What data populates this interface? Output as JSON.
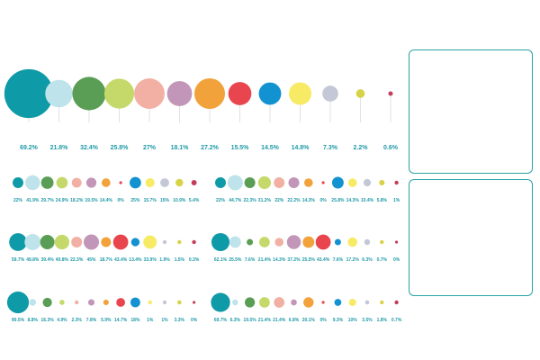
{
  "chart_data": {
    "type": "bubble-strip",
    "category_colors": [
      "#0e9aa7",
      "#bfe3ea",
      "#5a9e55",
      "#c5d96b",
      "#f2b0a4",
      "#c296b8",
      "#f2a23a",
      "#e8454e",
      "#1292d0",
      "#f7ea65",
      "#c4c8d6",
      "#d8d248",
      "#c43d5b"
    ],
    "rows": [
      {
        "values": [
          "69.2%",
          "21.8%",
          "32.4%",
          "25.8%",
          "27%",
          "18.1%",
          "27.2%",
          "15.5%",
          "14.5%",
          "14.8%",
          "7.3%",
          "2.2%",
          "0.6%"
        ]
      },
      {
        "values": [
          "22%",
          "41.9%",
          "29.7%",
          "24.9%",
          "18.2%",
          "19.5%",
          "14.4%",
          "0%",
          "25%",
          "15.7%",
          "15%",
          "10.9%",
          "5.4%"
        ]
      },
      {
        "values": [
          "22%",
          "44.7%",
          "22.3%",
          "31.2%",
          "22%",
          "22.2%",
          "14.3%",
          "0%",
          "25.8%",
          "14.3%",
          "10.4%",
          "5.8%",
          "1%"
        ]
      },
      {
        "values": [
          "59.7%",
          "49.8%",
          "39.4%",
          "40.8%",
          "22.3%",
          "45%",
          "18.7%",
          "43.4%",
          "13.4%",
          "33.9%",
          "1.9%",
          "1.5%",
          "0.3%"
        ]
      },
      {
        "values": [
          "62.1%",
          "25.5%",
          "7.6%",
          "21.4%",
          "14.3%",
          "37.2%",
          "25.5%",
          "43.4%",
          "7.6%",
          "17.2%",
          "6.3%",
          "0.7%",
          "0%"
        ]
      },
      {
        "values": [
          "90.5%",
          "8.8%",
          "16.3%",
          "4.9%",
          "2.3%",
          "7.8%",
          "5.9%",
          "14.7%",
          "18%",
          "1%",
          "1%",
          "3.3%",
          "0%"
        ]
      },
      {
        "values": [
          "69.7%",
          "6.3%",
          "19.5%",
          "21.4%",
          "21.4%",
          "6.8%",
          "20.1%",
          "0%",
          "9.3%",
          "10%",
          "3.5%",
          "1.8%",
          "0.7%"
        ]
      },
      {
        "values": []
      }
    ]
  }
}
